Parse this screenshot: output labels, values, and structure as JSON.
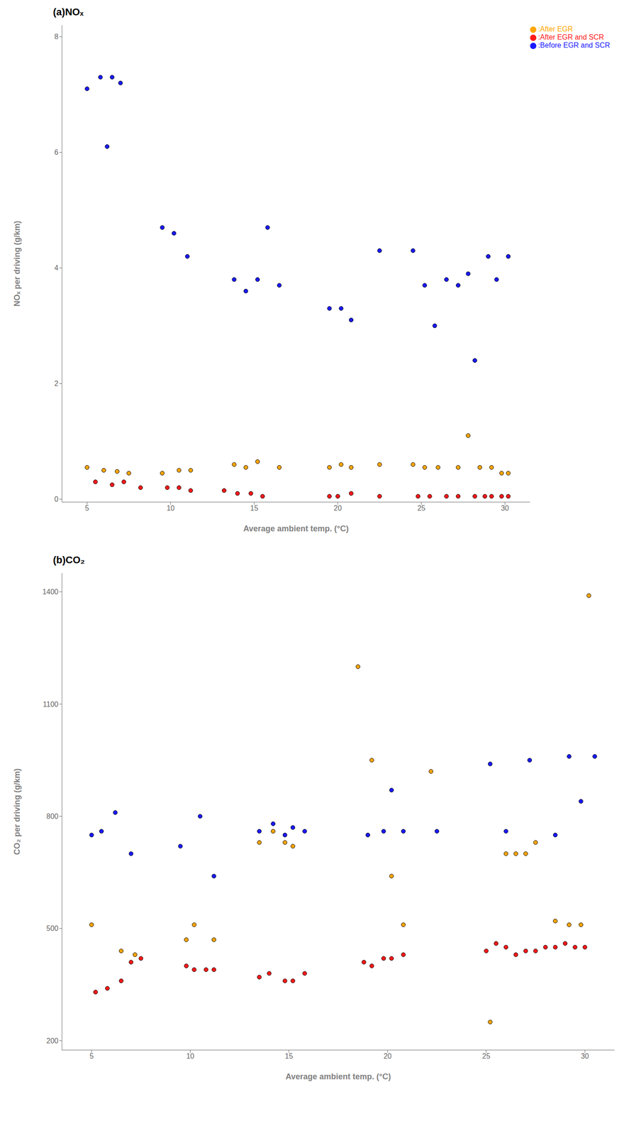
{
  "chart_data": [
    {
      "type": "scatter",
      "title": "(a)NOₓ",
      "xlabel": "Average ambient temp. (°C)",
      "ylabel": "NOₓ per driving (g/km)",
      "xlim": [
        3.5,
        31.5
      ],
      "xticks": [
        5,
        10,
        15,
        20,
        25,
        30
      ],
      "ylim": [
        -0.05,
        8.2
      ],
      "yticks": [
        0,
        2,
        4,
        6,
        8
      ],
      "grid": false,
      "legend": "upper right",
      "marker": "circle",
      "series": [
        {
          "name": ":Before EGR and SCR",
          "color": "#1919ff",
          "x": [
            5.0,
            5.8,
            6.5,
            7.0,
            6.2,
            9.5,
            10.2,
            11.0,
            13.8,
            14.5,
            15.2,
            15.8,
            16.5,
            19.5,
            20.2,
            20.8,
            22.5,
            24.5,
            25.2,
            25.8,
            26.5,
            27.2,
            27.8,
            28.2,
            29.0,
            29.5,
            30.2
          ],
          "y": [
            7.1,
            7.3,
            7.3,
            7.2,
            6.1,
            4.7,
            4.6,
            4.2,
            3.8,
            3.6,
            3.8,
            4.7,
            3.7,
            3.3,
            3.3,
            3.1,
            4.3,
            4.3,
            3.7,
            3.0,
            3.8,
            3.7,
            3.9,
            2.4,
            4.2,
            3.8,
            4.2
          ]
        },
        {
          "name": ":After EGR",
          "color": "#ffa500",
          "x": [
            5.0,
            6.0,
            6.8,
            7.5,
            9.5,
            10.5,
            11.2,
            13.8,
            14.5,
            15.2,
            16.5,
            19.5,
            20.2,
            20.8,
            22.5,
            24.5,
            25.2,
            26.0,
            27.2,
            27.8,
            28.5,
            29.2,
            29.8,
            30.2
          ],
          "y": [
            0.55,
            0.5,
            0.48,
            0.45,
            0.45,
            0.5,
            0.5,
            0.6,
            0.55,
            0.65,
            0.55,
            0.55,
            0.6,
            0.55,
            0.6,
            0.6,
            0.55,
            0.55,
            0.55,
            1.1,
            0.55,
            0.55,
            0.45,
            0.45
          ]
        },
        {
          "name": ":After EGR and SCR",
          "color": "#ff1919",
          "x": [
            5.5,
            6.5,
            7.2,
            8.2,
            9.8,
            10.5,
            11.2,
            13.2,
            14.0,
            14.8,
            15.5,
            19.5,
            20.0,
            20.8,
            22.5,
            24.8,
            25.5,
            26.5,
            27.2,
            28.2,
            28.8,
            29.2,
            29.8,
            30.2
          ],
          "y": [
            0.3,
            0.25,
            0.3,
            0.2,
            0.2,
            0.2,
            0.15,
            0.15,
            0.1,
            0.1,
            0.05,
            0.05,
            0.05,
            0.1,
            0.05,
            0.05,
            0.05,
            0.05,
            0.05,
            0.05,
            0.05,
            0.05,
            0.05,
            0.05
          ]
        }
      ]
    },
    {
      "type": "scatter",
      "title": "(b)CO₂",
      "xlabel": "Average ambient temp. (°C)",
      "ylabel": "CO₂ per driving (g/km)",
      "xlim": [
        3.5,
        31.5
      ],
      "xticks": [
        5,
        10,
        15,
        20,
        25,
        30
      ],
      "ylim": [
        175,
        1450
      ],
      "yticks": [
        200,
        500,
        800,
        1100,
        1400
      ],
      "grid": false,
      "marker": "circle",
      "series": [
        {
          "color": "#1919ff",
          "x": [
            5.0,
            5.5,
            6.2,
            7.0,
            9.5,
            10.5,
            11.2,
            13.5,
            14.2,
            14.8,
            15.2,
            15.8,
            19.0,
            19.8,
            20.2,
            20.8,
            22.5,
            25.2,
            26.0,
            27.2,
            28.5,
            29.2,
            29.8,
            30.5
          ],
          "y": [
            750,
            760,
            810,
            700,
            720,
            800,
            640,
            760,
            780,
            750,
            770,
            760,
            750,
            760,
            870,
            760,
            760,
            940,
            760,
            950,
            750,
            960,
            840,
            960
          ]
        },
        {
          "color": "#ffa500",
          "x": [
            5.0,
            6.5,
            7.2,
            9.8,
            10.2,
            11.2,
            13.5,
            14.2,
            14.8,
            15.2,
            18.5,
            19.2,
            20.2,
            20.8,
            22.2,
            25.2,
            26.0,
            26.5,
            27.0,
            27.5,
            28.5,
            29.2,
            29.8,
            30.2
          ],
          "y": [
            510,
            440,
            430,
            470,
            510,
            470,
            730,
            760,
            730,
            720,
            1200,
            950,
            640,
            510,
            920,
            250,
            700,
            700,
            700,
            730,
            520,
            510,
            510,
            1390
          ]
        },
        {
          "color": "#ff1919",
          "x": [
            5.2,
            5.8,
            6.5,
            7.0,
            7.5,
            9.8,
            10.2,
            10.8,
            11.2,
            13.5,
            14.0,
            14.8,
            15.2,
            15.8,
            18.8,
            19.2,
            19.8,
            20.2,
            20.8,
            25.0,
            25.5,
            26.0,
            26.5,
            27.0,
            27.5,
            28.0,
            28.5,
            29.0,
            29.5,
            30.0
          ],
          "y": [
            330,
            340,
            360,
            410,
            420,
            400,
            390,
            390,
            390,
            370,
            380,
            360,
            360,
            380,
            410,
            400,
            420,
            420,
            430,
            440,
            460,
            450,
            430,
            440,
            440,
            450,
            450,
            460,
            450,
            450
          ]
        }
      ]
    }
  ]
}
